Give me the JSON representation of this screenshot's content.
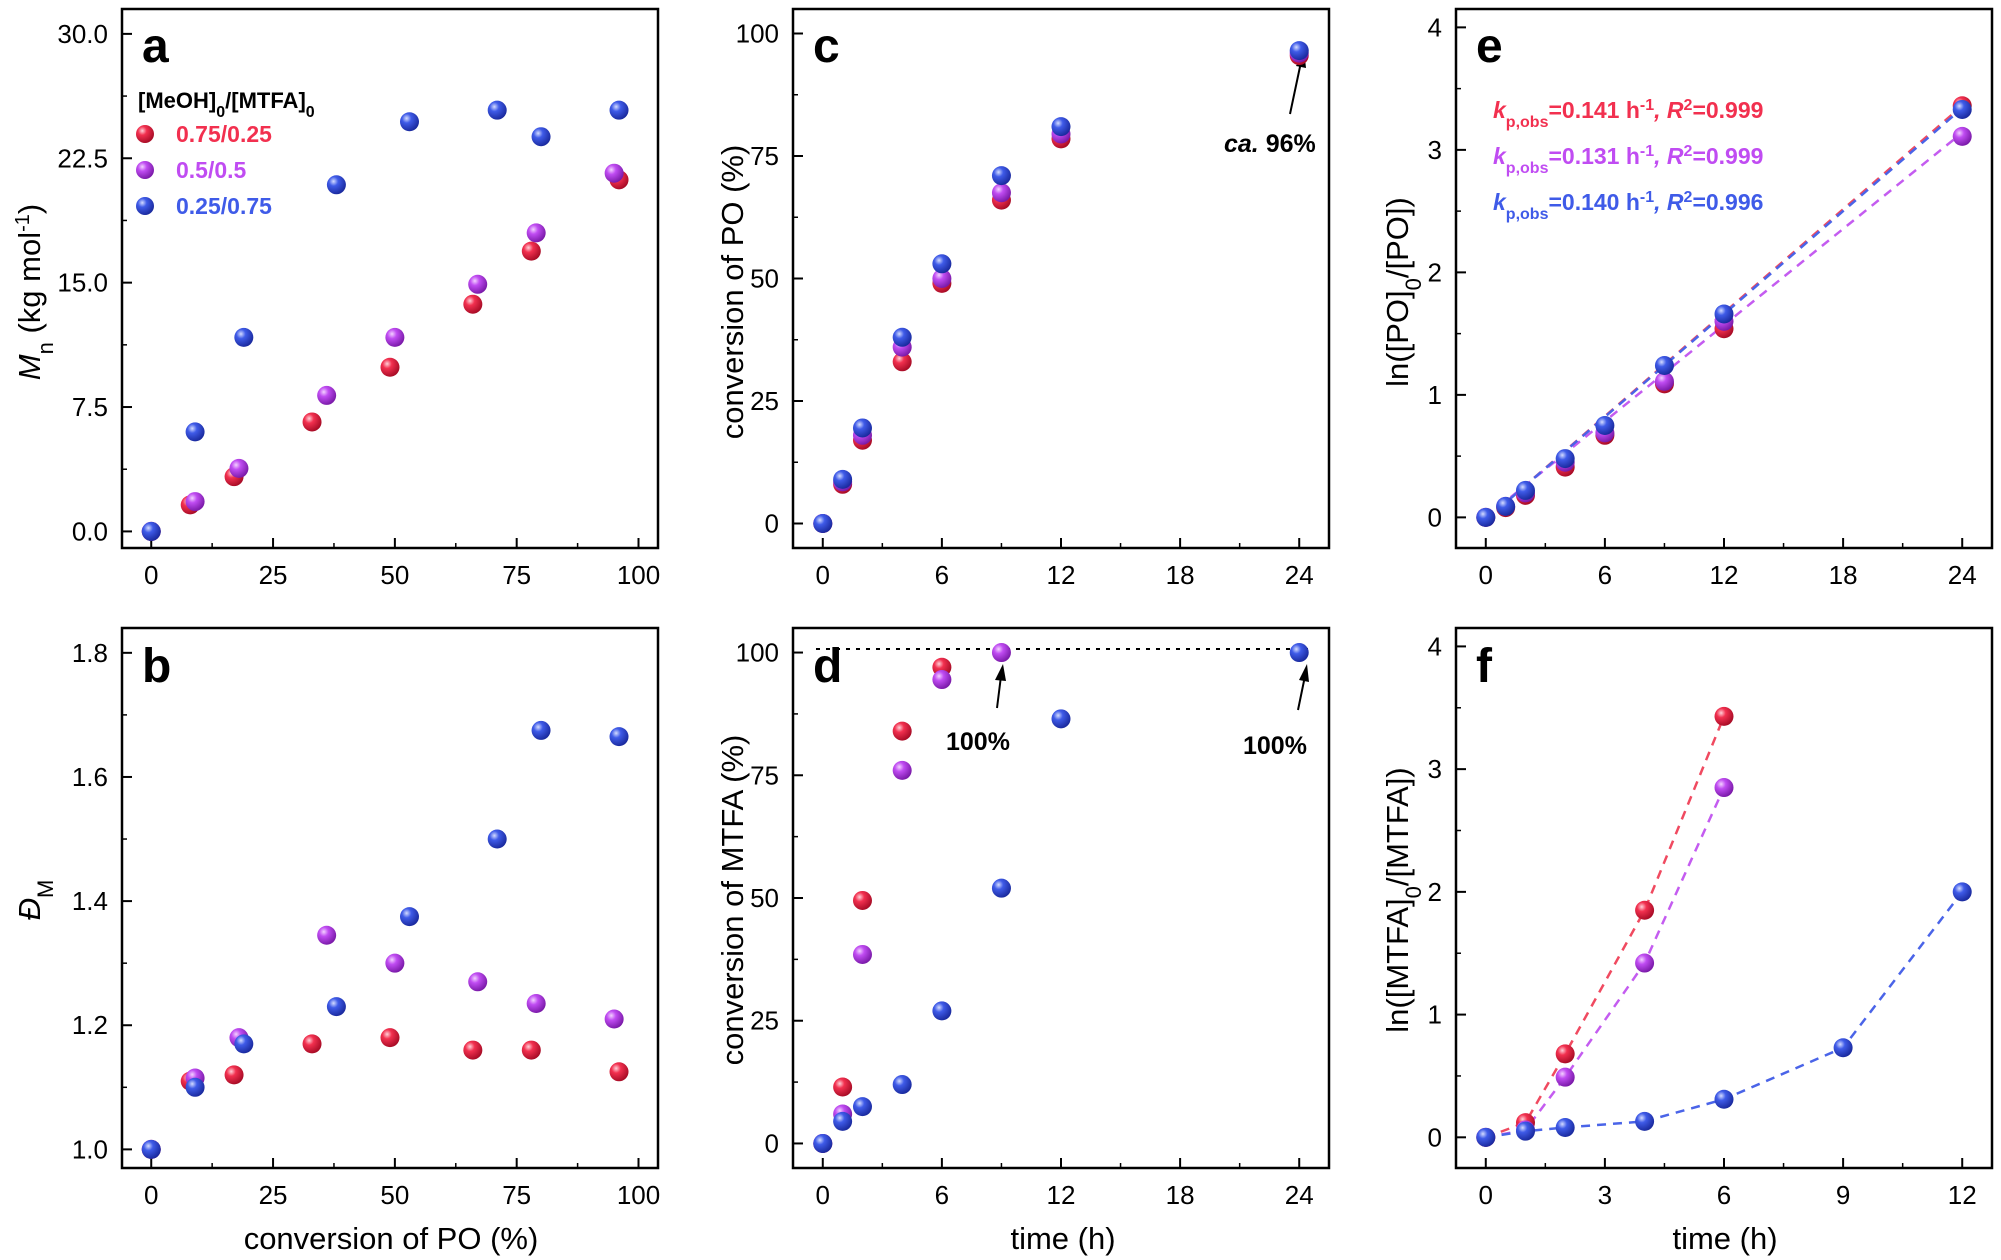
{
  "colors": {
    "red": "#f2304f",
    "purple": "#c04cf2",
    "blue": "#3f5be8",
    "red_line": "#f04a60",
    "purple_line": "#c45cf0",
    "blue_line": "#4a64e8"
  },
  "legend": {
    "title_main": "[MeOH]",
    "title_sub1": "0",
    "title_mid": "/[MTFA]",
    "title_sub2": "0",
    "entries": [
      "0.75/0.25",
      "0.5/0.5",
      "0.25/0.75"
    ]
  },
  "chart_data": [
    {
      "panel": "a",
      "type": "scatter",
      "ylabel": "M_n (kg mol^-1)",
      "xlim": [
        -6,
        104
      ],
      "ylim": [
        -1,
        31.5
      ],
      "xticks": [
        0,
        25,
        50,
        75,
        100
      ],
      "yticks": [
        "0.0",
        "7.5",
        "15.0",
        "22.5",
        "30.0"
      ],
      "series": [
        {
          "name": "0.75/0.25",
          "color": "red",
          "x": [
            0,
            8,
            17,
            33,
            49,
            66,
            78,
            96
          ],
          "y": [
            0,
            1.6,
            3.3,
            6.6,
            9.9,
            13.7,
            16.9,
            21.2
          ]
        },
        {
          "name": "0.5/0.5",
          "color": "purple",
          "x": [
            0,
            9,
            18,
            36,
            50,
            67,
            79,
            95
          ],
          "y": [
            0,
            1.8,
            3.8,
            8.2,
            11.7,
            14.9,
            18.0,
            21.6
          ]
        },
        {
          "name": "0.25/0.75",
          "color": "blue",
          "x": [
            0,
            9,
            19,
            38,
            53,
            71,
            80,
            96
          ],
          "y": [
            0,
            6.0,
            11.7,
            20.9,
            24.7,
            25.4,
            23.8,
            25.4
          ]
        }
      ]
    },
    {
      "panel": "b",
      "type": "scatter",
      "xlabel": "conversion of PO (%)",
      "ylabel": "Đ_M",
      "xlim": [
        -6,
        104
      ],
      "ylim": [
        0.97,
        1.84
      ],
      "xticks": [
        0,
        25,
        50,
        75,
        100
      ],
      "yticks": [
        "1.0",
        "1.2",
        "1.4",
        "1.6",
        "1.8"
      ],
      "series": [
        {
          "name": "0.75/0.25",
          "color": "red",
          "x": [
            0,
            8,
            17,
            33,
            49,
            66,
            78,
            96
          ],
          "y": [
            1.0,
            1.11,
            1.12,
            1.17,
            1.18,
            1.16,
            1.16,
            1.125
          ]
        },
        {
          "name": "0.5/0.5",
          "color": "purple",
          "x": [
            0,
            9,
            18,
            36,
            50,
            67,
            79,
            95
          ],
          "y": [
            1.0,
            1.115,
            1.18,
            1.345,
            1.3,
            1.27,
            1.235,
            1.21
          ]
        },
        {
          "name": "0.25/0.75",
          "color": "blue",
          "x": [
            0,
            9,
            19,
            38,
            53,
            71,
            80,
            96
          ],
          "y": [
            1.0,
            1.1,
            1.17,
            1.23,
            1.375,
            1.5,
            1.675,
            1.665
          ]
        }
      ]
    },
    {
      "panel": "c",
      "type": "scatter",
      "ylabel": "conversion of PO (%)",
      "xlim": [
        -1.5,
        25.5
      ],
      "ylim": [
        -5,
        105
      ],
      "xticks": [
        0,
        6,
        12,
        18,
        24
      ],
      "yticks": [
        "0",
        "25",
        "50",
        "75",
        "100"
      ],
      "series": [
        {
          "name": "0.75/0.25",
          "color": "red",
          "x": [
            0,
            1,
            2,
            4,
            6,
            9,
            12,
            24
          ],
          "y": [
            0,
            8,
            17,
            33,
            49,
            66,
            78.5,
            95.5
          ]
        },
        {
          "name": "0.5/0.5",
          "color": "purple",
          "x": [
            0,
            1,
            2,
            4,
            6,
            9,
            12,
            24
          ],
          "y": [
            0,
            8.5,
            18,
            36,
            50,
            67.5,
            79.5,
            96
          ]
        },
        {
          "name": "0.25/0.75",
          "color": "blue",
          "x": [
            0,
            1,
            2,
            4,
            6,
            9,
            12,
            24
          ],
          "y": [
            0,
            9,
            19.5,
            38,
            53,
            71,
            81,
            96.5
          ]
        }
      ],
      "annotation": "ca. 96%"
    },
    {
      "panel": "d",
      "type": "scatter",
      "xlabel": "time (h)",
      "ylabel": "conversion of MTFA (%)",
      "xlim": [
        -1.5,
        25.5
      ],
      "ylim": [
        -5,
        105
      ],
      "xticks": [
        0,
        6,
        12,
        18,
        24
      ],
      "yticks": [
        "0",
        "25",
        "50",
        "75",
        "100"
      ],
      "series": [
        {
          "name": "0.75/0.25",
          "color": "red",
          "x": [
            0,
            1,
            2,
            4,
            6
          ],
          "y": [
            0,
            11.5,
            49.5,
            84,
            97
          ]
        },
        {
          "name": "0.5/0.5",
          "color": "purple",
          "x": [
            0,
            1,
            2,
            4,
            6,
            9
          ],
          "y": [
            0,
            6,
            38.5,
            76,
            94.5,
            100
          ]
        },
        {
          "name": "0.25/0.75",
          "color": "blue",
          "x": [
            0,
            1,
            2,
            4,
            6,
            9,
            12,
            24
          ],
          "y": [
            0,
            4.5,
            7.5,
            12,
            27,
            52,
            86.5,
            100
          ]
        }
      ],
      "annotations": [
        "100%",
        "100%"
      ]
    },
    {
      "panel": "e",
      "type": "scatter",
      "ylabel": "ln([PO]_0/[PO])",
      "xlim": [
        -1.5,
        25.5
      ],
      "ylim": [
        -0.25,
        4.15
      ],
      "xticks": [
        0,
        6,
        12,
        18,
        24
      ],
      "yticks": [
        "0",
        "1",
        "2",
        "3",
        "4"
      ],
      "series": [
        {
          "name": "0.75/0.25",
          "color": "red",
          "x": [
            0,
            1,
            2,
            4,
            6,
            9,
            12,
            24
          ],
          "y": [
            0,
            0.08,
            0.18,
            0.41,
            0.67,
            1.09,
            1.54,
            3.36
          ],
          "fit": [
            [
              0,
              -0.02
            ],
            [
              24,
              3.36
            ]
          ]
        },
        {
          "name": "0.5/0.5",
          "color": "purple",
          "x": [
            0,
            1,
            2,
            4,
            6,
            9,
            12,
            24
          ],
          "y": [
            0,
            0.09,
            0.2,
            0.45,
            0.69,
            1.11,
            1.6,
            3.11
          ],
          "fit": [
            [
              0,
              0.0
            ],
            [
              24,
              3.14
            ]
          ]
        },
        {
          "name": "0.25/0.75",
          "color": "blue",
          "x": [
            0,
            1,
            2,
            4,
            6,
            9,
            12,
            24
          ],
          "y": [
            0,
            0.09,
            0.22,
            0.48,
            0.75,
            1.24,
            1.66,
            3.33
          ],
          "fit": [
            [
              0,
              -0.02
            ],
            [
              24,
              3.34
            ]
          ]
        }
      ],
      "kp_labels": [
        {
          "color": "red",
          "k": "k",
          "sub": "p,obs",
          "val": "=0.141 h",
          "sup": "-1",
          "r": ", R",
          "r_sup": "2",
          "r_val": "=0.999"
        },
        {
          "color": "purple",
          "k": "k",
          "sub": "p,obs",
          "val": "=0.131 h",
          "sup": "-1",
          "r": ", R",
          "r_sup": "2",
          "r_val": "=0.999"
        },
        {
          "color": "blue",
          "k": "k",
          "sub": "p,obs",
          "val": "=0.140 h",
          "sup": "-1",
          "r": ", R",
          "r_sup": "2",
          "r_val": "=0.996"
        }
      ]
    },
    {
      "panel": "f",
      "type": "scatter",
      "xlabel": "time (h)",
      "ylabel": "ln([MTFA]_0/[MTFA])",
      "xlim": [
        -0.75,
        12.75
      ],
      "ylim": [
        -0.25,
        4.15
      ],
      "xticks": [
        0,
        3,
        6,
        9,
        12
      ],
      "yticks": [
        "0",
        "1",
        "2",
        "3",
        "4"
      ],
      "series": [
        {
          "name": "0.75/0.25",
          "color": "red",
          "x": [
            0,
            1,
            2,
            4,
            6
          ],
          "y": [
            0,
            0.12,
            0.68,
            1.85,
            3.43
          ],
          "connect": true
        },
        {
          "name": "0.5/0.5",
          "color": "purple",
          "x": [
            0,
            1,
            2,
            4,
            6
          ],
          "y": [
            0,
            0.06,
            0.49,
            1.42,
            2.85
          ],
          "connect": true
        },
        {
          "name": "0.25/0.75",
          "color": "blue",
          "x": [
            0,
            1,
            2,
            4,
            6,
            9,
            12
          ],
          "y": [
            0,
            0.05,
            0.08,
            0.13,
            0.31,
            0.73,
            2.0
          ],
          "connect": true
        }
      ]
    }
  ]
}
